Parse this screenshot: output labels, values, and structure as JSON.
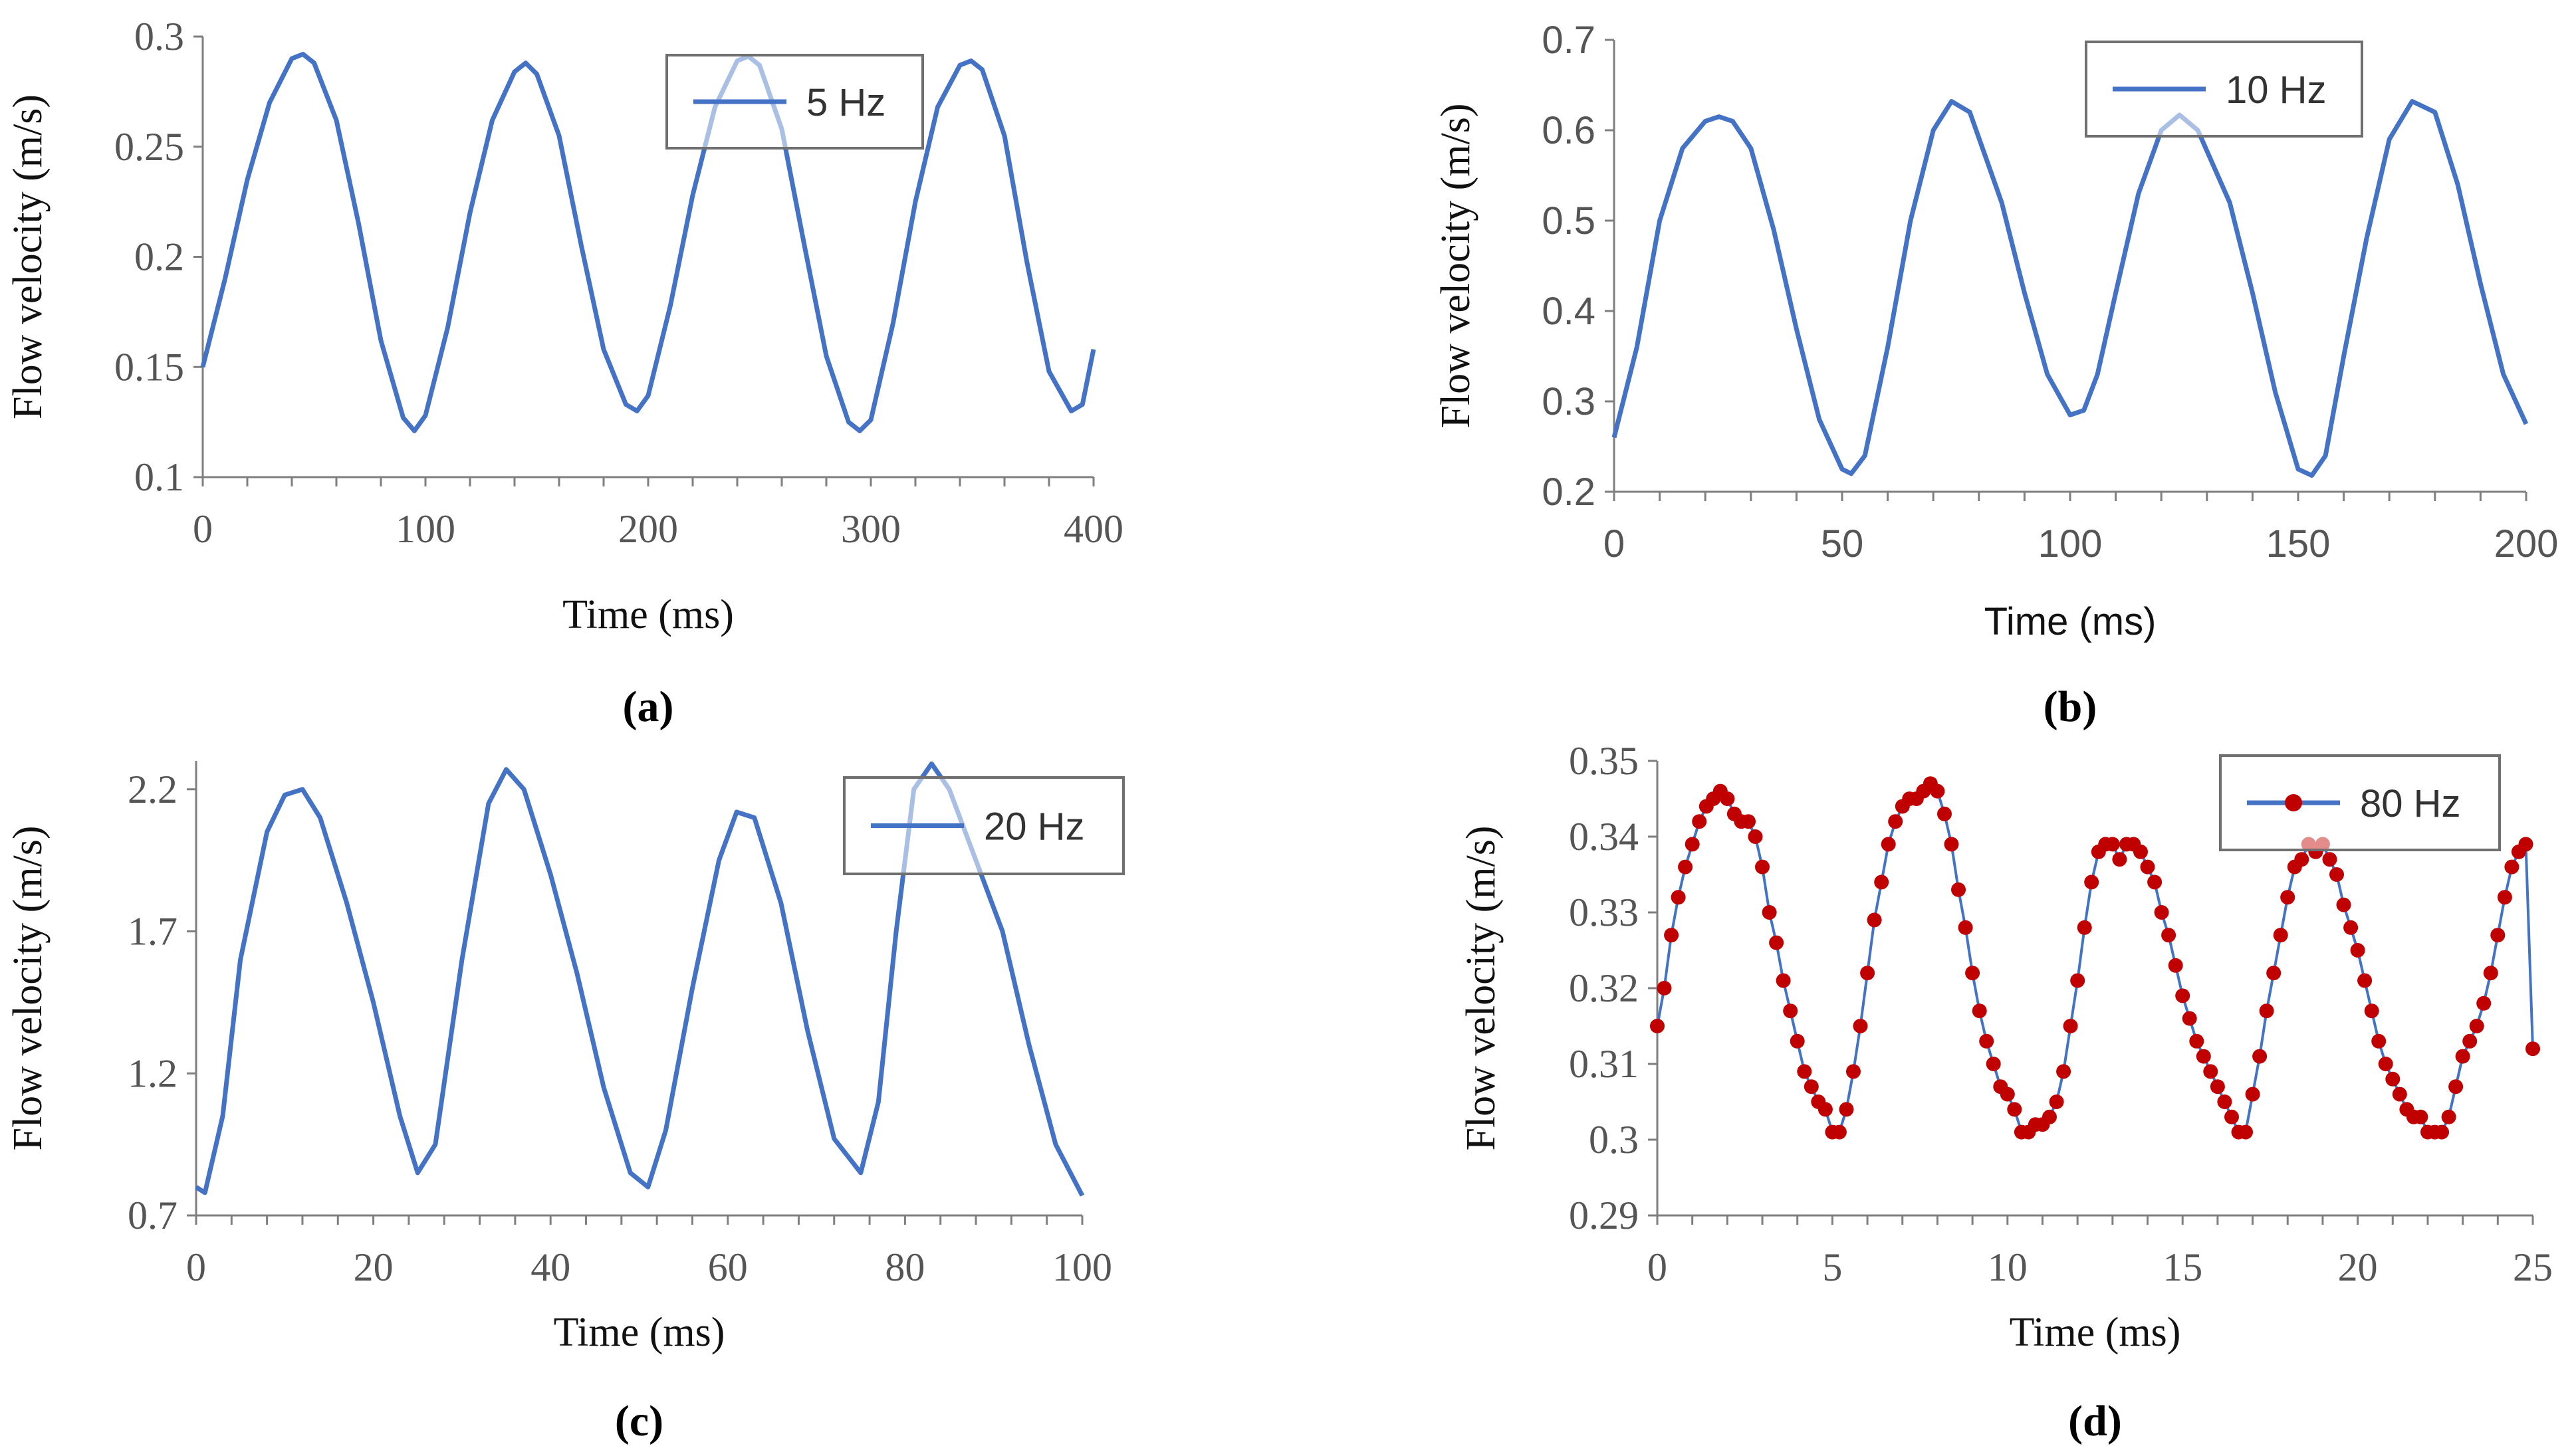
{
  "chart_data": [
    {
      "type": "line",
      "panel_label": "(a)",
      "xlabel": "Time (ms)",
      "ylabel": "Flow velocity (m/s)",
      "xlim": [
        0,
        400
      ],
      "ylim": [
        0.1,
        0.3
      ],
      "x_ticks": [
        0,
        100,
        200,
        300,
        400
      ],
      "x_tick_labels": [
        "0",
        "100",
        "200",
        "300",
        "400"
      ],
      "y_ticks": [
        0.1,
        0.15,
        0.2,
        0.25,
        0.3
      ],
      "y_tick_labels": [
        "0.1",
        "0.15",
        "0.2",
        "0.25",
        "0.3"
      ],
      "legend": "5 Hz",
      "legend_position": "top-right",
      "markers": false,
      "series": [
        {
          "name": "5 Hz",
          "color": "#4472c4",
          "x": [
            0,
            10,
            20,
            30,
            40,
            45,
            50,
            60,
            70,
            80,
            90,
            95,
            100,
            110,
            120,
            130,
            140,
            145,
            150,
            160,
            170,
            180,
            190,
            195,
            200,
            210,
            220,
            230,
            240,
            245,
            250,
            260,
            270,
            280,
            290,
            295,
            300,
            310,
            320,
            330,
            340,
            345,
            350,
            360,
            370,
            380,
            390,
            395,
            400
          ],
          "values": [
            0.15,
            0.19,
            0.235,
            0.27,
            0.29,
            0.292,
            0.288,
            0.262,
            0.215,
            0.162,
            0.127,
            0.121,
            0.128,
            0.168,
            0.22,
            0.262,
            0.284,
            0.288,
            0.283,
            0.255,
            0.205,
            0.158,
            0.133,
            0.13,
            0.137,
            0.178,
            0.228,
            0.268,
            0.289,
            0.291,
            0.287,
            0.258,
            0.206,
            0.155,
            0.125,
            0.121,
            0.126,
            0.17,
            0.225,
            0.268,
            0.287,
            0.289,
            0.285,
            0.255,
            0.198,
            0.148,
            0.13,
            0.133,
            0.158
          ]
        }
      ]
    },
    {
      "type": "line",
      "panel_label": "(b)",
      "xlabel": "Time (ms)",
      "ylabel": "Flow velocity (m/s)",
      "xlim": [
        0,
        200
      ],
      "ylim": [
        0.2,
        0.7
      ],
      "x_ticks": [
        0,
        50,
        100,
        150,
        200
      ],
      "x_tick_labels": [
        "0",
        "50",
        "100",
        "150",
        "200"
      ],
      "y_ticks": [
        0.2,
        0.3,
        0.4,
        0.5,
        0.6,
        0.7
      ],
      "y_tick_labels": [
        "0.2",
        "0.3",
        "0.4",
        "0.5",
        "0.6",
        "0.7"
      ],
      "legend": "10 Hz",
      "legend_position": "top-right",
      "markers": false,
      "series": [
        {
          "name": "10 Hz",
          "color": "#4472c4",
          "x": [
            0,
            5,
            10,
            15,
            20,
            23,
            26,
            30,
            35,
            40,
            45,
            50,
            52,
            55,
            60,
            65,
            70,
            74,
            78,
            85,
            90,
            95,
            100,
            103,
            106,
            110,
            115,
            120,
            124,
            128,
            135,
            140,
            145,
            150,
            153,
            156,
            160,
            165,
            170,
            175,
            180,
            185,
            190,
            195,
            200
          ],
          "values": [
            0.26,
            0.36,
            0.5,
            0.58,
            0.61,
            0.615,
            0.61,
            0.58,
            0.49,
            0.38,
            0.28,
            0.225,
            0.22,
            0.24,
            0.36,
            0.5,
            0.6,
            0.632,
            0.62,
            0.52,
            0.42,
            0.33,
            0.285,
            0.29,
            0.33,
            0.42,
            0.53,
            0.6,
            0.617,
            0.6,
            0.52,
            0.42,
            0.31,
            0.225,
            0.218,
            0.24,
            0.35,
            0.48,
            0.59,
            0.632,
            0.62,
            0.54,
            0.43,
            0.33,
            0.275
          ]
        }
      ]
    },
    {
      "type": "line",
      "panel_label": "(c)",
      "xlabel": "Time (ms)",
      "ylabel": "Flow velocity (m/s)",
      "xlim": [
        0,
        100
      ],
      "ylim": [
        0.7,
        2.3
      ],
      "x_ticks": [
        0,
        20,
        40,
        60,
        80,
        100
      ],
      "x_tick_labels": [
        "0",
        "20",
        "40",
        "60",
        "80",
        "100"
      ],
      "y_ticks": [
        0.7,
        1.2,
        1.7,
        2.2
      ],
      "y_tick_labels": [
        "0.7",
        "1.2",
        "1.7",
        "2.2"
      ],
      "legend": "20 Hz",
      "legend_position": "top-right",
      "markers": false,
      "series": [
        {
          "name": "20 Hz",
          "color": "#4472c4",
          "x": [
            0,
            1,
            3,
            5,
            8,
            10,
            12,
            14,
            17,
            20,
            23,
            25,
            27,
            30,
            33,
            35,
            37,
            40,
            43,
            46,
            49,
            51,
            53,
            56,
            59,
            61,
            63,
            66,
            69,
            72,
            75,
            77,
            79,
            81,
            83,
            85,
            88,
            91,
            94,
            97,
            100
          ],
          "values": [
            0.8,
            0.78,
            1.05,
            1.6,
            2.05,
            2.18,
            2.2,
            2.1,
            1.8,
            1.45,
            1.05,
            0.85,
            0.95,
            1.6,
            2.15,
            2.27,
            2.2,
            1.9,
            1.55,
            1.15,
            0.85,
            0.8,
            1.0,
            1.5,
            1.95,
            2.12,
            2.1,
            1.8,
            1.35,
            0.97,
            0.85,
            1.1,
            1.7,
            2.2,
            2.29,
            2.2,
            1.95,
            1.7,
            1.3,
            0.95,
            0.77
          ]
        }
      ]
    },
    {
      "type": "line",
      "panel_label": "(d)",
      "xlabel": "Time (ms)",
      "ylabel": "Flow velocity (m/s)",
      "xlim": [
        0,
        25
      ],
      "ylim": [
        0.29,
        0.35
      ],
      "x_ticks": [
        0,
        5,
        10,
        15,
        20,
        25
      ],
      "x_tick_labels": [
        "0",
        "5",
        "10",
        "15",
        "20",
        "25"
      ],
      "y_ticks": [
        0.29,
        0.3,
        0.31,
        0.32,
        0.33,
        0.34,
        0.35
      ],
      "y_tick_labels": [
        "0.29",
        "0.3",
        "0.31",
        "0.32",
        "0.33",
        "0.34",
        "0.35"
      ],
      "legend": "80 Hz",
      "legend_position": "top-right",
      "markers": true,
      "series": [
        {
          "name": "80 Hz",
          "color": "#4472c4",
          "marker_color": "#c00000",
          "x": [
            0,
            0.2,
            0.4,
            0.6,
            0.8,
            1.0,
            1.2,
            1.4,
            1.6,
            1.8,
            2.0,
            2.2,
            2.4,
            2.6,
            2.8,
            3.0,
            3.2,
            3.4,
            3.6,
            3.8,
            4.0,
            4.2,
            4.4,
            4.6,
            4.8,
            5.0,
            5.2,
            5.4,
            5.6,
            5.8,
            6.0,
            6.2,
            6.4,
            6.6,
            6.8,
            7.0,
            7.2,
            7.4,
            7.6,
            7.8,
            8.0,
            8.2,
            8.4,
            8.6,
            8.8,
            9.0,
            9.2,
            9.4,
            9.6,
            9.8,
            10.0,
            10.2,
            10.4,
            10.6,
            10.8,
            11.0,
            11.2,
            11.4,
            11.6,
            11.8,
            12.0,
            12.2,
            12.4,
            12.6,
            12.8,
            13.0,
            13.2,
            13.4,
            13.6,
            13.8,
            14.0,
            14.2,
            14.4,
            14.6,
            14.8,
            15.0,
            15.2,
            15.4,
            15.6,
            15.8,
            16.0,
            16.2,
            16.4,
            16.6,
            16.8,
            17.0,
            17.2,
            17.4,
            17.6,
            17.8,
            18.0,
            18.2,
            18.4,
            18.6,
            18.8,
            19.0,
            19.2,
            19.4,
            19.6,
            19.8,
            20.0,
            20.2,
            20.4,
            20.6,
            20.8,
            21.0,
            21.2,
            21.4,
            21.6,
            21.8,
            22.0,
            22.2,
            22.4,
            22.6,
            22.8,
            23.0,
            23.2,
            23.4,
            23.6,
            23.8,
            24.0,
            24.2,
            24.4,
            24.6,
            24.8,
            25.0
          ],
          "values": [
            0.315,
            0.32,
            0.327,
            0.332,
            0.336,
            0.339,
            0.342,
            0.344,
            0.345,
            0.346,
            0.345,
            0.343,
            0.342,
            0.342,
            0.34,
            0.336,
            0.33,
            0.326,
            0.321,
            0.317,
            0.313,
            0.309,
            0.307,
            0.305,
            0.304,
            0.301,
            0.301,
            0.304,
            0.309,
            0.315,
            0.322,
            0.329,
            0.334,
            0.339,
            0.342,
            0.344,
            0.345,
            0.345,
            0.346,
            0.347,
            0.346,
            0.343,
            0.339,
            0.333,
            0.328,
            0.322,
            0.317,
            0.313,
            0.31,
            0.307,
            0.306,
            0.304,
            0.301,
            0.301,
            0.302,
            0.302,
            0.303,
            0.305,
            0.309,
            0.315,
            0.321,
            0.328,
            0.334,
            0.338,
            0.339,
            0.339,
            0.337,
            0.339,
            0.339,
            0.338,
            0.336,
            0.334,
            0.33,
            0.327,
            0.323,
            0.319,
            0.316,
            0.313,
            0.311,
            0.309,
            0.307,
            0.305,
            0.303,
            0.301,
            0.301,
            0.306,
            0.311,
            0.317,
            0.322,
            0.327,
            0.332,
            0.336,
            0.337,
            0.339,
            0.338,
            0.339,
            0.337,
            0.335,
            0.331,
            0.328,
            0.325,
            0.321,
            0.317,
            0.313,
            0.31,
            0.308,
            0.306,
            0.304,
            0.303,
            0.303,
            0.301,
            0.301,
            0.301,
            0.303,
            0.307,
            0.311,
            0.313,
            0.315,
            0.318,
            0.322,
            0.327,
            0.332,
            0.336,
            0.338,
            0.339,
            0.312
          ]
        }
      ]
    }
  ]
}
